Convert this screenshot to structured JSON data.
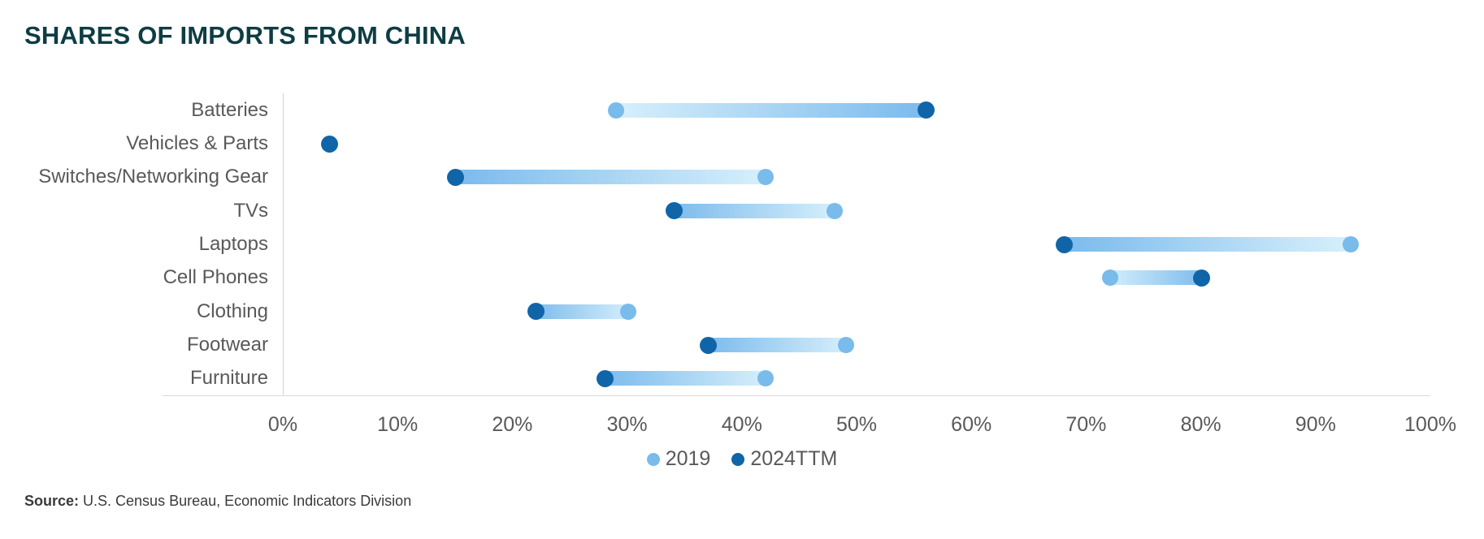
{
  "title": "SHARES OF IMPORTS FROM CHINA",
  "source": {
    "label": "Source:",
    "text": " U.S. Census Bureau, Economic Indicators Division"
  },
  "colors": {
    "title": "#0e3d44",
    "axis_text": "#595959",
    "axis_line": "#d9d9d9",
    "series_2019_dot": "#79bbeb",
    "series_2024ttm_dot": "#1065a8",
    "connector_dark_end": "#79b9ec",
    "connector_light_end": "#d9f1fc",
    "background": "#ffffff"
  },
  "chart_data": {
    "type": "dumbbell",
    "title": "SHARES OF IMPORTS FROM CHINA",
    "orientation": "horizontal",
    "categories": [
      "Batteries",
      "Vehicles & Parts",
      "Switches/Networking Gear",
      "TVs",
      "Laptops",
      "Cell Phones",
      "Clothing",
      "Footwear",
      "Furniture"
    ],
    "series": [
      {
        "name": "2019",
        "color": "#79bbeb",
        "values": [
          29,
          null,
          42,
          48,
          93,
          72,
          30,
          49,
          42
        ]
      },
      {
        "name": "2024TTM",
        "color": "#1065a8",
        "values": [
          56,
          4,
          15,
          34,
          68,
          80,
          22,
          37,
          28
        ]
      }
    ],
    "unit": "%",
    "xlim": [
      0,
      100
    ],
    "x_ticks": [
      "0%",
      "10%",
      "20%",
      "30%",
      "40%",
      "50%",
      "60%",
      "70%",
      "80%",
      "90%",
      "100%"
    ],
    "grid": "off",
    "legend_position": "bottom-center"
  }
}
